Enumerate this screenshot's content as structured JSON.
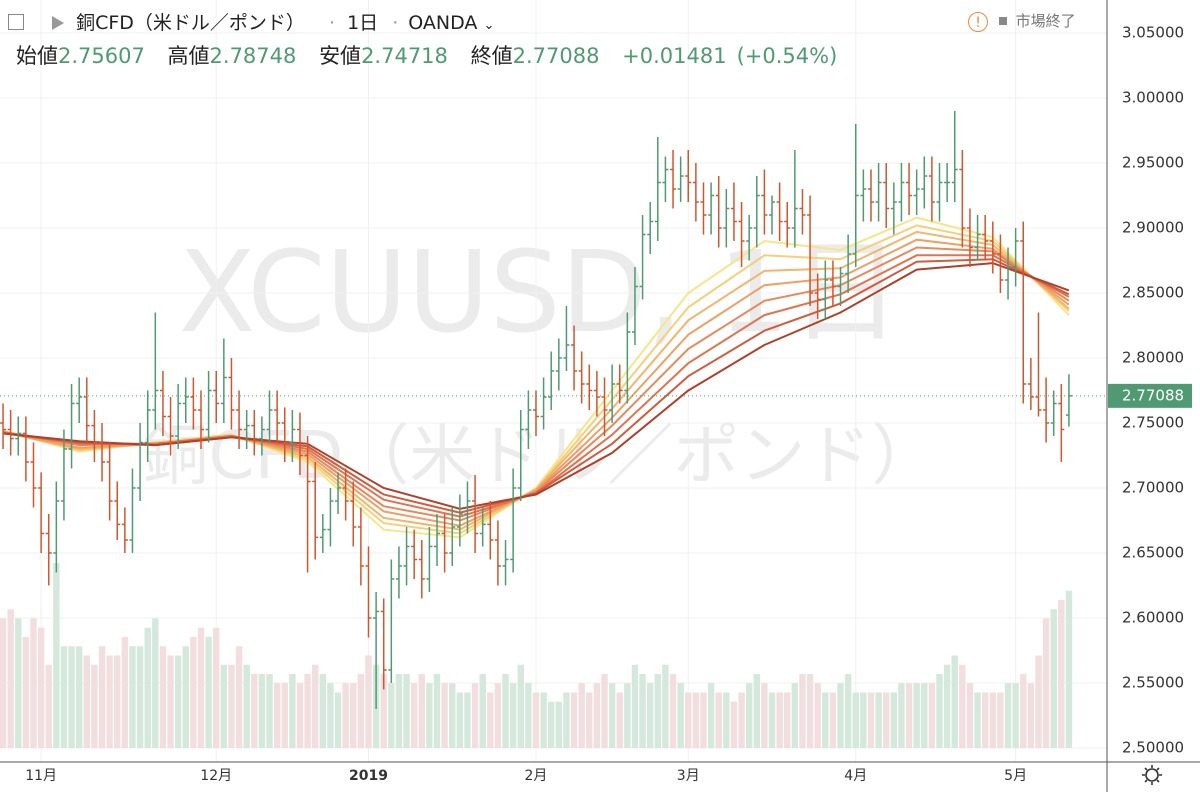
{
  "header": {
    "title": "銅CFD（米ドル／ポンド）",
    "interval": "1日",
    "source": "OANDA",
    "status": "市場終了",
    "open_label": "始値",
    "high_label": "高値",
    "low_label": "安値",
    "close_label": "終値",
    "change": "+0.01481",
    "change_pct": "(+0.54%)",
    "watermark": "XCUUSD, 1日"
  },
  "chart_data": {
    "type": "ohlc",
    "up_color": "#4f9a72",
    "down_color": "#d0562e",
    "up_volume_color": "#d4e8dc",
    "down_volume_color": "#f2dede",
    "ylim": [
      2.4892,
      3.0754
    ],
    "xlim": [
      -0.4,
      145
    ],
    "yticks": [
      {
        "value": 2.5,
        "label": "2.50000"
      },
      {
        "value": 2.55,
        "label": "2.55000"
      },
      {
        "value": 2.6,
        "label": "2.60000"
      },
      {
        "value": 2.65,
        "label": "2.65000"
      },
      {
        "value": 2.7,
        "label": "2.70000"
      },
      {
        "value": 2.75,
        "label": "2.75000"
      },
      {
        "value": 2.8,
        "label": "2.80000"
      },
      {
        "value": 2.85,
        "label": "2.85000"
      },
      {
        "value": 2.9,
        "label": "2.90000"
      },
      {
        "value": 2.95,
        "label": "2.95000"
      },
      {
        "value": 3.0,
        "label": "3.00000"
      },
      {
        "value": 3.05,
        "label": "3.05000"
      }
    ],
    "xticks": [
      {
        "value": 5,
        "label": "11月"
      },
      {
        "value": 28,
        "label": "12月"
      },
      {
        "value": 48,
        "label": "2019"
      },
      {
        "value": 70,
        "label": "2月"
      },
      {
        "value": 90,
        "label": "3月"
      },
      {
        "value": 112,
        "label": "4月"
      },
      {
        "value": 133,
        "label": "5月"
      }
    ],
    "grid": true,
    "open": [
      2.75,
      2.745,
      2.738,
      2.742,
      2.72,
      2.7,
      2.665,
      2.65,
      2.69,
      2.73,
      2.765,
      2.77,
      2.748,
      2.735,
      2.72,
      2.69,
      2.672,
      2.66,
      2.7,
      2.735,
      2.76,
      2.775,
      2.755,
      2.74,
      2.765,
      2.77,
      2.76,
      2.745,
      2.775,
      2.765,
      2.785,
      2.76,
      2.745,
      2.748,
      2.738,
      2.745,
      2.76,
      2.75,
      2.735,
      2.745,
      2.725,
      2.705,
      2.662,
      2.668,
      2.69,
      2.7,
      2.69,
      2.67,
      2.64,
      2.6,
      2.605,
      2.56,
      2.63,
      2.64,
      2.655,
      2.645,
      2.63,
      2.655,
      2.665,
      2.65,
      2.67,
      2.68,
      2.69,
      2.665,
      2.672,
      2.66,
      2.64,
      2.645,
      2.7,
      2.745,
      2.76,
      2.755,
      2.77,
      2.79,
      2.8,
      2.81,
      2.79,
      2.78,
      2.775,
      2.77,
      2.76,
      2.78,
      2.775,
      2.82,
      2.855,
      2.895,
      2.905,
      2.935,
      2.945,
      2.93,
      2.94,
      2.935,
      2.92,
      2.91,
      2.925,
      2.9,
      2.915,
      2.905,
      2.89,
      2.9,
      2.925,
      2.91,
      2.92,
      2.905,
      2.9,
      2.915,
      2.91,
      2.85,
      2.845,
      2.86,
      2.855,
      2.865,
      2.88,
      2.925,
      2.93,
      2.92,
      2.935,
      2.915,
      2.92,
      2.935,
      2.925,
      2.93,
      2.94,
      2.92,
      2.935,
      2.935,
      2.945,
      2.9,
      2.885,
      2.895,
      2.89,
      2.88,
      2.86,
      2.87,
      2.89,
      2.78,
      2.77,
      2.76,
      2.75,
      2.765,
      2.75607
    ],
    "high": [
      2.765,
      2.76,
      2.755,
      2.755,
      2.735,
      2.712,
      2.68,
      2.705,
      2.745,
      2.78,
      2.785,
      2.785,
      2.76,
      2.75,
      2.735,
      2.705,
      2.685,
      2.715,
      2.75,
      2.775,
      2.835,
      2.79,
      2.77,
      2.78,
      2.785,
      2.785,
      2.775,
      2.79,
      2.79,
      2.815,
      2.8,
      2.775,
      2.76,
      2.76,
      2.755,
      2.775,
      2.775,
      2.762,
      2.76,
      2.758,
      2.74,
      2.72,
      2.68,
      2.7,
      2.712,
      2.715,
      2.705,
      2.685,
      2.655,
      2.62,
      2.615,
      2.645,
      2.655,
      2.67,
      2.668,
      2.66,
      2.67,
      2.68,
      2.68,
      2.685,
      2.695,
      2.705,
      2.71,
      2.685,
      2.69,
      2.675,
      2.66,
      2.715,
      2.76,
      2.775,
      2.775,
      2.785,
      2.805,
      2.815,
      2.84,
      2.825,
      2.805,
      2.795,
      2.79,
      2.785,
      2.795,
      2.795,
      2.835,
      2.87,
      2.91,
      2.92,
      2.97,
      2.955,
      2.96,
      2.955,
      2.96,
      2.95,
      2.935,
      2.935,
      2.94,
      2.93,
      2.935,
      2.92,
      2.91,
      2.94,
      2.945,
      2.925,
      2.935,
      2.92,
      2.96,
      2.93,
      2.925,
      2.865,
      2.875,
      2.875,
      2.87,
      2.895,
      2.98,
      2.945,
      2.945,
      2.95,
      2.95,
      2.935,
      2.95,
      2.95,
      2.945,
      2.955,
      2.955,
      2.95,
      2.95,
      2.99,
      2.96,
      2.915,
      2.91,
      2.91,
      2.905,
      2.895,
      2.885,
      2.9,
      2.905,
      2.8,
      2.835,
      2.785,
      2.775,
      2.78,
      2.78748
    ],
    "low": [
      2.73,
      2.725,
      2.725,
      2.705,
      2.685,
      2.65,
      2.625,
      2.635,
      2.675,
      2.715,
      2.75,
      2.735,
      2.72,
      2.705,
      2.675,
      2.66,
      2.65,
      2.65,
      2.69,
      2.72,
      2.745,
      2.74,
      2.725,
      2.73,
      2.75,
      2.745,
      2.73,
      2.735,
      2.75,
      2.75,
      2.745,
      2.73,
      2.73,
      2.725,
      2.725,
      2.735,
      2.735,
      2.72,
      2.72,
      2.71,
      2.635,
      2.645,
      2.65,
      2.655,
      2.68,
      2.675,
      2.655,
      2.625,
      2.585,
      2.53,
      2.545,
      2.55,
      2.615,
      2.625,
      2.63,
      2.615,
      2.62,
      2.64,
      2.635,
      2.64,
      2.655,
      2.665,
      2.65,
      2.655,
      2.645,
      2.625,
      2.625,
      2.635,
      2.69,
      2.73,
      2.74,
      2.745,
      2.76,
      2.775,
      2.79,
      2.775,
      2.765,
      2.76,
      2.755,
      2.74,
      2.75,
      2.765,
      2.765,
      2.81,
      2.845,
      2.88,
      2.89,
      2.92,
      2.915,
      2.92,
      2.92,
      2.905,
      2.895,
      2.895,
      2.885,
      2.885,
      2.89,
      2.87,
      2.875,
      2.885,
      2.895,
      2.895,
      2.89,
      2.885,
      2.885,
      2.895,
      2.84,
      2.83,
      2.83,
      2.84,
      2.84,
      2.85,
      2.87,
      2.905,
      2.905,
      2.905,
      2.9,
      2.895,
      2.905,
      2.91,
      2.91,
      2.915,
      2.905,
      2.905,
      2.92,
      2.92,
      2.885,
      2.87,
      2.875,
      2.875,
      2.865,
      2.85,
      2.845,
      2.855,
      2.765,
      2.76,
      2.755,
      2.735,
      2.74,
      2.72,
      2.74718
    ],
    "close": [
      2.745,
      2.738,
      2.742,
      2.72,
      2.7,
      2.665,
      2.65,
      2.69,
      2.73,
      2.765,
      2.77,
      2.748,
      2.735,
      2.72,
      2.69,
      2.672,
      2.66,
      2.7,
      2.735,
      2.76,
      2.775,
      2.755,
      2.74,
      2.765,
      2.77,
      2.76,
      2.745,
      2.775,
      2.765,
      2.785,
      2.76,
      2.745,
      2.748,
      2.738,
      2.745,
      2.76,
      2.75,
      2.735,
      2.745,
      2.725,
      2.705,
      2.662,
      2.668,
      2.69,
      2.7,
      2.69,
      2.67,
      2.64,
      2.6,
      2.605,
      2.56,
      2.63,
      2.64,
      2.655,
      2.645,
      2.63,
      2.655,
      2.665,
      2.65,
      2.67,
      2.68,
      2.69,
      2.665,
      2.672,
      2.66,
      2.64,
      2.645,
      2.7,
      2.745,
      2.76,
      2.755,
      2.77,
      2.79,
      2.8,
      2.81,
      2.79,
      2.78,
      2.775,
      2.77,
      2.76,
      2.78,
      2.775,
      2.82,
      2.855,
      2.895,
      2.905,
      2.935,
      2.945,
      2.93,
      2.94,
      2.935,
      2.92,
      2.91,
      2.925,
      2.9,
      2.915,
      2.905,
      2.89,
      2.9,
      2.925,
      2.91,
      2.92,
      2.905,
      2.9,
      2.915,
      2.91,
      2.85,
      2.845,
      2.86,
      2.855,
      2.865,
      2.88,
      2.925,
      2.93,
      2.92,
      2.935,
      2.915,
      2.92,
      2.935,
      2.925,
      2.93,
      2.94,
      2.92,
      2.935,
      2.935,
      2.945,
      2.9,
      2.885,
      2.895,
      2.89,
      2.88,
      2.86,
      2.87,
      2.89,
      2.78,
      2.77,
      2.76,
      2.75,
      2.765,
      2.745,
      2.77088
    ],
    "volume": [
      70,
      75,
      70,
      60,
      70,
      65,
      45,
      100,
      55,
      55,
      55,
      50,
      45,
      55,
      50,
      50,
      60,
      55,
      55,
      65,
      70,
      55,
      50,
      50,
      55,
      60,
      65,
      60,
      65,
      45,
      45,
      55,
      45,
      40,
      40,
      40,
      35,
      35,
      40,
      35,
      40,
      45,
      40,
      35,
      30,
      35,
      35,
      40,
      50,
      45,
      40,
      35,
      40,
      40,
      35,
      40,
      35,
      40,
      35,
      35,
      30,
      30,
      35,
      40,
      30,
      35,
      40,
      35,
      45,
      35,
      30,
      30,
      25,
      25,
      30,
      30,
      35,
      30,
      35,
      40,
      35,
      30,
      35,
      45,
      40,
      35,
      40,
      45,
      40,
      35,
      30,
      30,
      30,
      35,
      30,
      30,
      25,
      30,
      35,
      40,
      35,
      30,
      30,
      30,
      35,
      40,
      40,
      35,
      30,
      30,
      35,
      40,
      30,
      30,
      30,
      30,
      30,
      30,
      35,
      35,
      35,
      35,
      35,
      40,
      45,
      50,
      45,
      35,
      30,
      30,
      30,
      30,
      35,
      35,
      40,
      35,
      50,
      70,
      75,
      80,
      85
    ],
    "ma": {
      "x": [
        0,
        10,
        20,
        30,
        40,
        50,
        60,
        70,
        80,
        90,
        100,
        110,
        120,
        130,
        140
      ],
      "series": [
        {
          "color": "#f7e58a",
          "values": [
            2.744,
            2.728,
            2.735,
            2.741,
            2.72,
            2.668,
            2.662,
            2.7,
            2.775,
            2.85,
            2.89,
            2.883,
            2.908,
            2.893,
            2.833
          ]
        },
        {
          "color": "#f5cf7a",
          "values": [
            2.744,
            2.729,
            2.735,
            2.741,
            2.722,
            2.673,
            2.665,
            2.699,
            2.768,
            2.839,
            2.879,
            2.876,
            2.902,
            2.89,
            2.836
          ]
        },
        {
          "color": "#f2b56e",
          "values": [
            2.743,
            2.73,
            2.734,
            2.74,
            2.724,
            2.677,
            2.668,
            2.699,
            2.761,
            2.829,
            2.867,
            2.869,
            2.897,
            2.887,
            2.838
          ]
        },
        {
          "color": "#eea064",
          "values": [
            2.743,
            2.731,
            2.734,
            2.74,
            2.726,
            2.682,
            2.671,
            2.698,
            2.754,
            2.818,
            2.856,
            2.862,
            2.891,
            2.884,
            2.841
          ]
        },
        {
          "color": "#e9885a",
          "values": [
            2.743,
            2.733,
            2.734,
            2.74,
            2.728,
            2.686,
            2.675,
            2.697,
            2.748,
            2.807,
            2.844,
            2.856,
            2.885,
            2.882,
            2.844
          ]
        },
        {
          "color": "#e07350",
          "values": [
            2.743,
            2.734,
            2.734,
            2.74,
            2.73,
            2.691,
            2.678,
            2.696,
            2.741,
            2.796,
            2.833,
            2.849,
            2.879,
            2.879,
            2.847
          ]
        },
        {
          "color": "#d05c3e",
          "values": [
            2.742,
            2.735,
            2.733,
            2.739,
            2.732,
            2.695,
            2.681,
            2.696,
            2.734,
            2.786,
            2.821,
            2.842,
            2.874,
            2.876,
            2.849
          ]
        },
        {
          "color": "#b0402a",
          "values": [
            2.742,
            2.736,
            2.733,
            2.739,
            2.734,
            2.7,
            2.684,
            2.695,
            2.727,
            2.775,
            2.81,
            2.835,
            2.868,
            2.873,
            2.852
          ]
        }
      ]
    }
  }
}
